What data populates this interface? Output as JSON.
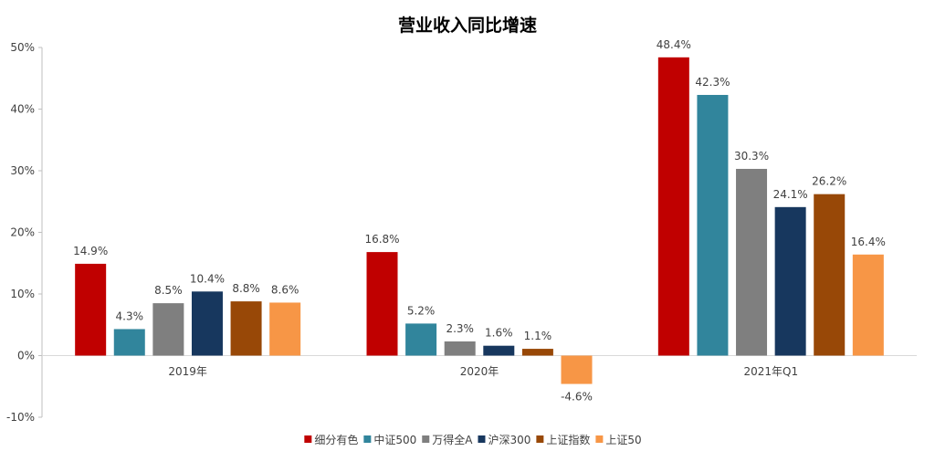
{
  "chart_data": {
    "type": "bar",
    "title": "营业收入同比增速",
    "xlabel": "",
    "ylabel": "",
    "ylim": [
      -10,
      50
    ],
    "yticks": [
      "-10%",
      "0%",
      "10%",
      "20%",
      "30%",
      "40%",
      "50%"
    ],
    "ytick_values": [
      -10,
      0,
      10,
      20,
      30,
      40,
      50
    ],
    "grid": false,
    "legend_position": "bottom",
    "categories": [
      "2019年",
      "2020年",
      "2021年Q1"
    ],
    "series": [
      {
        "name": "细分有色",
        "color": "#C00000",
        "values": [
          14.9,
          16.8,
          48.4
        ],
        "labels": [
          "14.9%",
          "16.8%",
          "48.4%"
        ]
      },
      {
        "name": "中证500",
        "color": "#31859C",
        "values": [
          4.3,
          5.2,
          42.3
        ],
        "labels": [
          "4.3%",
          "5.2%",
          "42.3%"
        ]
      },
      {
        "name": "万得全A",
        "color": "#7F7F7F",
        "values": [
          8.5,
          2.3,
          30.3
        ],
        "labels": [
          "8.5%",
          "2.3%",
          "30.3%"
        ]
      },
      {
        "name": "沪深300",
        "color": "#17375E",
        "values": [
          10.4,
          1.6,
          24.1
        ],
        "labels": [
          "10.4%",
          "1.6%",
          "24.1%"
        ]
      },
      {
        "name": "上证指数",
        "color": "#984807",
        "values": [
          8.8,
          1.1,
          26.2
        ],
        "labels": [
          "8.8%",
          "1.1%",
          "26.2%"
        ]
      },
      {
        "name": "上证50",
        "color": "#F79646",
        "values": [
          8.6,
          -4.6,
          16.4
        ],
        "labels": [
          "8.6%",
          "-4.6%",
          "16.4%"
        ]
      }
    ]
  }
}
